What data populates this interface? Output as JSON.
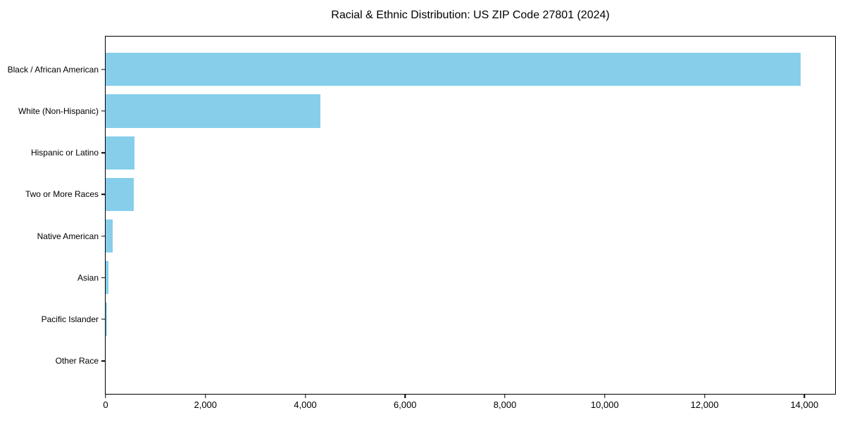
{
  "chart_data": {
    "type": "bar",
    "orientation": "horizontal",
    "title": "Racial & Ethnic Distribution: US ZIP Code 27801 (2024)",
    "categories": [
      "Black / African American",
      "White (Non-Hispanic)",
      "Hispanic or Latino",
      "Two or More Races",
      "Native American",
      "Asian",
      "Pacific Islander",
      "Other Race"
    ],
    "values": [
      13920,
      4310,
      580,
      565,
      140,
      50,
      30,
      0
    ],
    "bar_color": "#87CEEB",
    "xlabel": "",
    "ylabel": "",
    "xlim": [
      0,
      14616
    ],
    "xtick_values": [
      0,
      2000,
      4000,
      6000,
      8000,
      10000,
      12000,
      14000
    ],
    "xtick_labels": [
      "0",
      "2,000",
      "4,000",
      "6,000",
      "8,000",
      "10,000",
      "12,000",
      "14,000"
    ],
    "grid": false,
    "legend_position": "none"
  }
}
